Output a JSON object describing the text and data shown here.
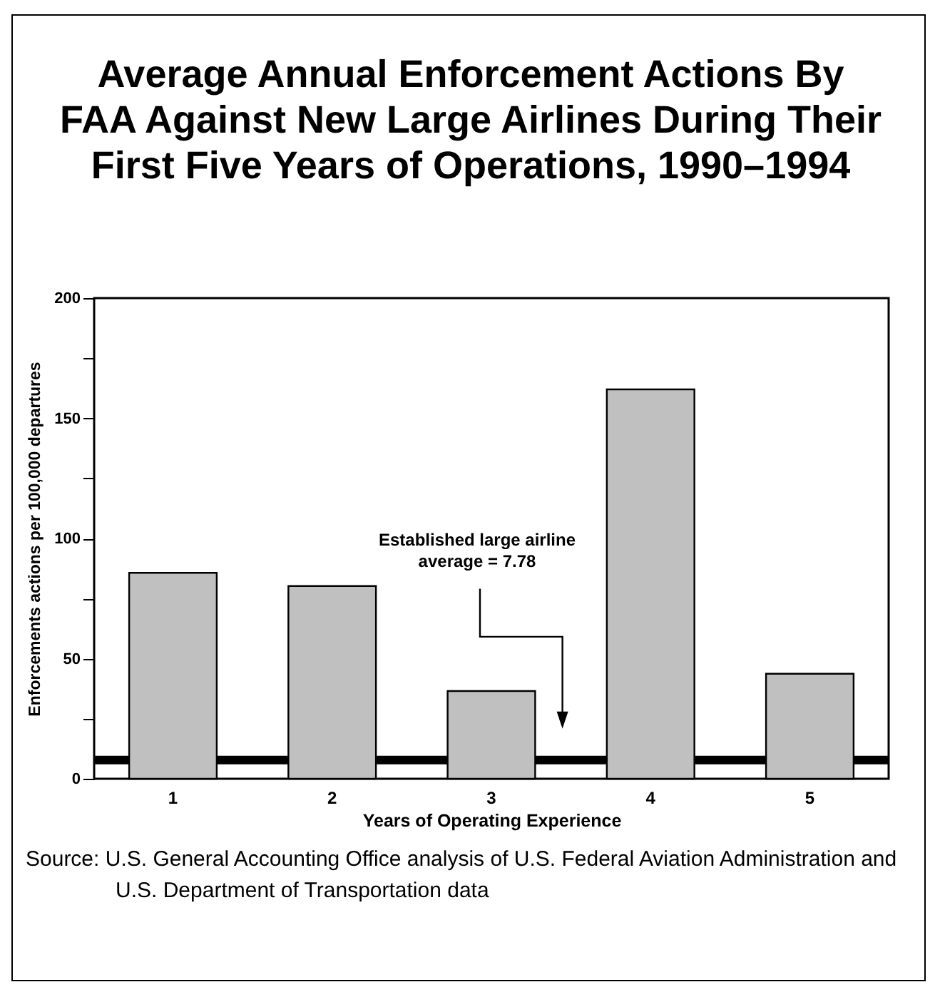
{
  "chart_data": {
    "type": "bar",
    "title": "Average Annual Enforcement Actions By FAA Against New Large Airlines During Their First Five Years of Operations, 1990–1994",
    "xlabel": "Years of Operating Experience",
    "ylabel": "Enforcements actions per 100,000 departures",
    "categories": [
      "1",
      "2",
      "3",
      "4",
      "5"
    ],
    "values": [
      85.7,
      80.2,
      36.5,
      162,
      43.7
    ],
    "color": "#c0c0c0",
    "ylim": [
      0,
      200
    ],
    "yticks": [
      0,
      {
        "value": 25,
        "label": null
      },
      50,
      {
        "value": 75,
        "label": null
      },
      100,
      {
        "value": 125,
        "label": null
      },
      150,
      {
        "value": 175,
        "label": null
      },
      200
    ],
    "grid": false,
    "ref_lines": [
      {
        "axis": "y",
        "value": 7.78,
        "label": "Established large airline average = 7.78",
        "color": "#000000"
      }
    ],
    "annotations": [
      "Source: U.S. General Accounting Office analysis of U.S. Federal Aviation Administration and U.S. Department of Transportation data"
    ]
  }
}
